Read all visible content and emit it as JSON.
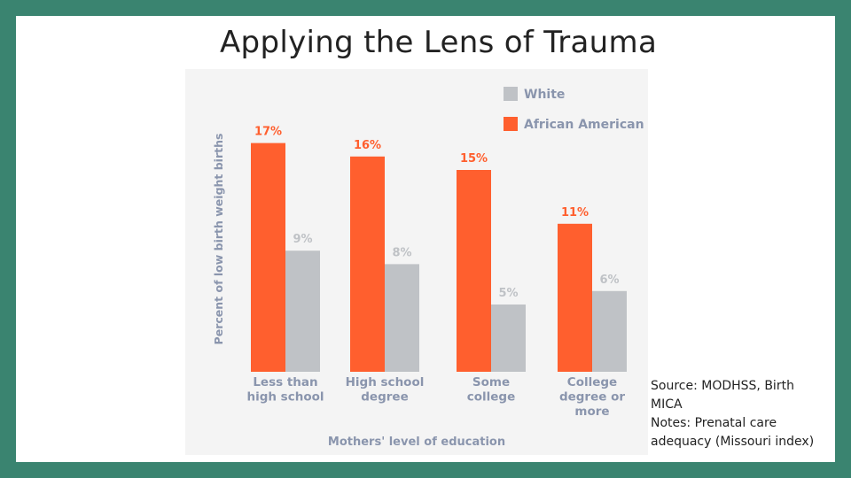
{
  "slide": {
    "title": "Applying the Lens of Trauma",
    "source_line": "Source: MODHSS, Birth MICA",
    "notes_line": "Notes: Prenatal care adequacy (Missouri index)"
  },
  "colors": {
    "frame": "#3a8470",
    "african_american": "#ff5f2e",
    "white": "#bfc2c6",
    "axis_text": "#8a95ad"
  },
  "chart_data": {
    "type": "bar",
    "title": "",
    "xlabel": "Mothers' level of education",
    "ylabel": "Percent of low birth weight births",
    "ylim": [
      0,
      20
    ],
    "grid": false,
    "legend_position": "top-right",
    "categories": [
      [
        "Less than",
        "high school"
      ],
      [
        "High school",
        "degree"
      ],
      [
        "Some",
        "college"
      ],
      [
        "College",
        "degree or",
        "more"
      ]
    ],
    "series": [
      {
        "name": "African American",
        "color": "#ff5f2e",
        "values": [
          17,
          16,
          15,
          11
        ],
        "labels": [
          "17%",
          "16%",
          "15%",
          "11%"
        ]
      },
      {
        "name": "White",
        "color": "#bfc2c6",
        "values": [
          9,
          8,
          5,
          6
        ],
        "labels": [
          "9%",
          "8%",
          "5%",
          "6%"
        ]
      }
    ],
    "legend": [
      "White",
      "African American"
    ]
  }
}
